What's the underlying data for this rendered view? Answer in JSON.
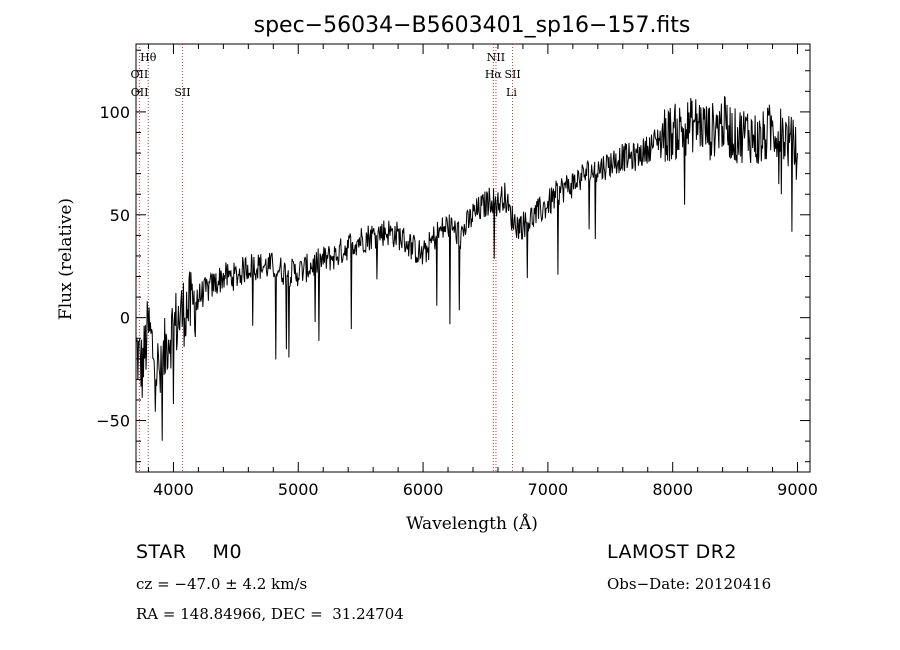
{
  "chart_data": {
    "type": "line",
    "title": "spec−56034−B5603401_sp16−157.fits",
    "xlabel": "Wavelength (Å)",
    "ylabel": "Flux (relative)",
    "xlim": [
      3700,
      9100
    ],
    "ylim": [
      -75,
      133
    ],
    "x_ticks": [
      4000,
      5000,
      6000,
      7000,
      8000,
      9000
    ],
    "y_ticks": [
      -50,
      0,
      50,
      100
    ],
    "y_tick_labels": [
      "−50",
      "0",
      "50",
      "100"
    ],
    "grid": false,
    "series": [
      {
        "x": [
          3700,
          3750,
          3800,
          3850,
          3900,
          3950,
          4000,
          4050,
          4100,
          4150,
          4200,
          4300,
          4400,
          4500,
          4600,
          4700,
          4800,
          4900,
          5000,
          5100,
          5200,
          5300,
          5400,
          5500,
          5600,
          5700,
          5800,
          5900,
          6000,
          6100,
          6200,
          6300,
          6400,
          6500,
          6550,
          6600,
          6650,
          6700,
          6750,
          6800,
          6900,
          7000,
          7100,
          7200,
          7300,
          7400,
          7500,
          7600,
          7700,
          7800,
          7900,
          8000,
          8100,
          8200,
          8300,
          8400,
          8500,
          8600,
          8700,
          8800,
          8900,
          9000
        ],
        "y": [
          -15,
          -25,
          -5,
          -20,
          -30,
          -10,
          -5,
          0,
          5,
          5,
          10,
          15,
          20,
          20,
          25,
          25,
          25,
          22,
          22,
          25,
          28,
          30,
          35,
          38,
          40,
          42,
          40,
          35,
          30,
          40,
          45,
          40,
          50,
          55,
          58,
          55,
          60,
          50,
          45,
          45,
          50,
          55,
          62,
          65,
          70,
          72,
          75,
          78,
          78,
          82,
          88,
          90,
          92,
          95,
          90,
          95,
          88,
          90,
          85,
          92,
          88,
          80
        ]
      }
    ],
    "annotations": [
      {
        "label": "Hθ",
        "x": 3798,
        "row": 1
      },
      {
        "label": "OII",
        "x": 3727,
        "row": 2
      },
      {
        "label": "OII",
        "x": 3729,
        "row": 3
      },
      {
        "label": "SII",
        "x": 4072,
        "row": 3
      },
      {
        "label": "NII",
        "x": 6584,
        "row": 1
      },
      {
        "label": "Hα",
        "x": 6563,
        "row": 2
      },
      {
        "label": "SII",
        "x": 6717,
        "row": 2
      },
      {
        "label": "Li",
        "x": 6708,
        "row": 3
      }
    ],
    "line_markers_x": [
      3727,
      3798,
      4072,
      6563,
      6584,
      6717
    ]
  },
  "info": {
    "class_label": "STAR    M0",
    "survey": "LAMOST DR2",
    "cz": "cz = −47.0 ± 4.2 km/s",
    "obs_date": "Obs−Date: 20120416",
    "coords": "RA = 148.84966, DEC =  31.24704"
  }
}
